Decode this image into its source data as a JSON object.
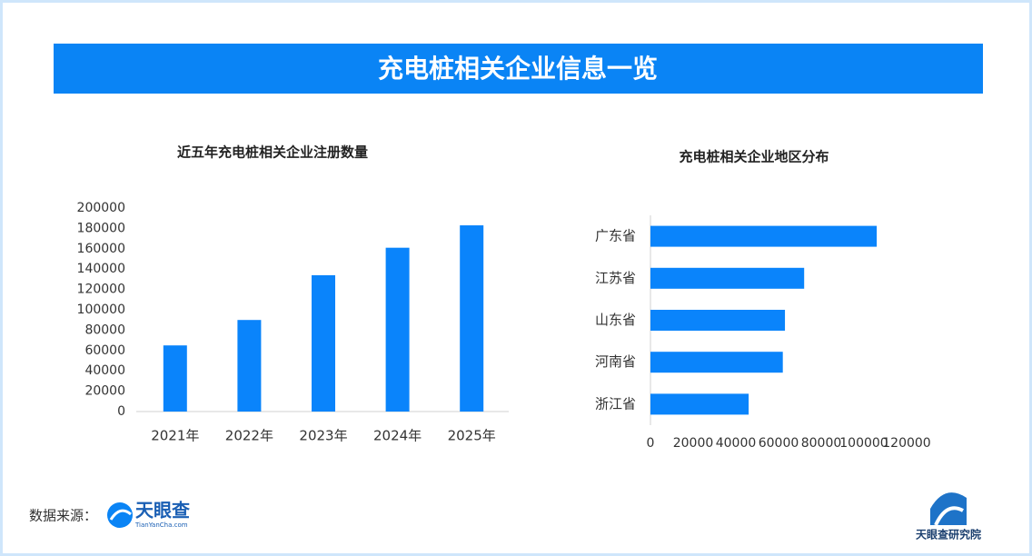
{
  "header": {
    "title": "充电桩相关企业信息一览"
  },
  "chart_data": [
    {
      "type": "bar",
      "orientation": "vertical",
      "title": "近五年充电桩相关企业注册数量",
      "categories": [
        "2021年",
        "2022年",
        "2023年",
        "2024年",
        "2025年"
      ],
      "values": [
        65000,
        90000,
        134000,
        161000,
        183000
      ],
      "color": "#0a84fb",
      "ylim": [
        0,
        200000
      ],
      "yticks": [
        0,
        20000,
        40000,
        60000,
        80000,
        100000,
        120000,
        140000,
        160000,
        180000,
        200000
      ],
      "grid": false
    },
    {
      "type": "bar",
      "orientation": "horizontal",
      "title": "充电桩相关企业地区分布",
      "categories": [
        "广东省",
        "江苏省",
        "山东省",
        "河南省",
        "浙江省"
      ],
      "values": [
        106000,
        72000,
        63000,
        62000,
        46000
      ],
      "color": "#0a84fb",
      "xlim": [
        0,
        120000
      ],
      "xticks": [
        0,
        20000,
        40000,
        60000,
        80000,
        100000,
        120000
      ],
      "grid": false
    }
  ],
  "footer": {
    "source_label": "数据来源：",
    "logo_name": "天眼查",
    "logo_url": "TianYanCha.com",
    "institute": "天眼查研究院"
  }
}
